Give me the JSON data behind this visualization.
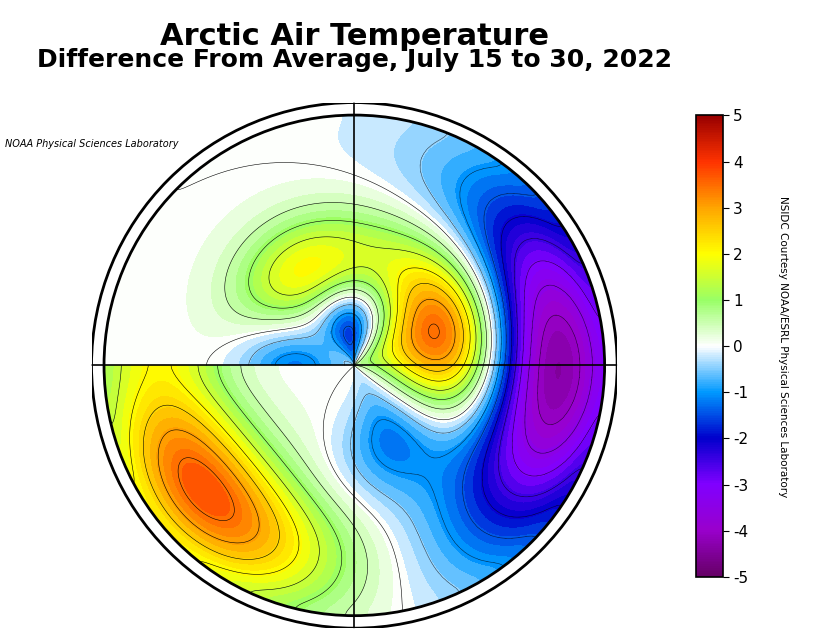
{
  "title_line1": "Arctic Air Temperature",
  "title_line2": "Difference From Average, July 15 to 30, 2022",
  "colorbar_label": "NSIDC Courtesy NOAA/ESRL Physical Sciences Laboratory",
  "map_credit": "NOAA Physical Sciences Laboratory",
  "vmin": -5,
  "vmax": 5,
  "colorbar_ticks": [
    5,
    4,
    3,
    2,
    1,
    0,
    -1,
    -2,
    -3,
    -4,
    -5
  ],
  "title_fontsize": 22,
  "subtitle_fontsize": 18,
  "background_color": "#ffffff",
  "colors_neg": [
    "#660066",
    "#9900cc",
    "#cc00ff",
    "#cc33ff",
    "#0000cc",
    "#0033ff",
    "#0099ff",
    "#00ccff",
    "#00ffff"
  ],
  "colors_pos": [
    "#ffffff",
    "#ccffcc",
    "#99ff66",
    "#66ff00",
    "#ccff00",
    "#ffff00",
    "#ffcc00",
    "#ff9900",
    "#ff6600",
    "#ff3300",
    "#cc0000"
  ]
}
